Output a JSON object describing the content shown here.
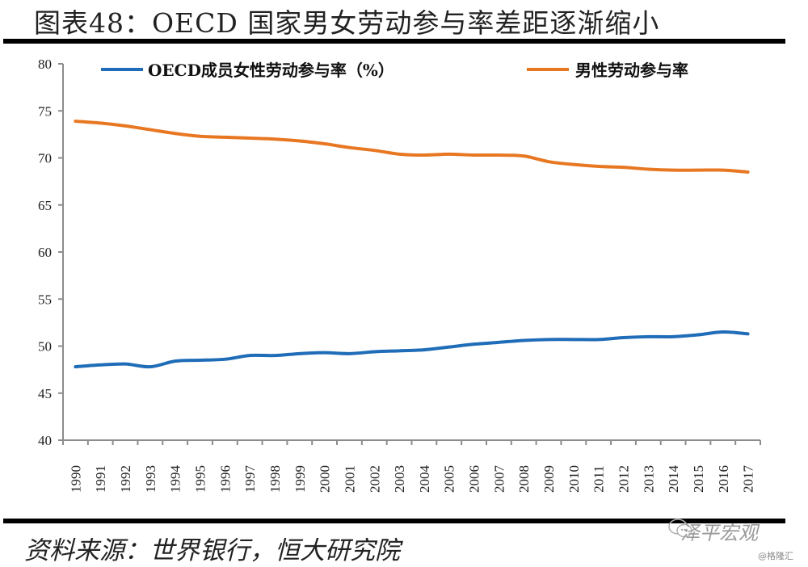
{
  "header": {
    "title": "图表48：OECD 国家男女劳动参与率差距逐渐缩小"
  },
  "footer": {
    "source": "资料来源：世界银行，恒大研究院",
    "watermark": "泽平宏观",
    "watermark_icon": "wechat-icon",
    "credit": "@格隆汇"
  },
  "chart_data": {
    "type": "line",
    "title": "图表48：OECD 国家男女劳动参与率差距逐渐缩小",
    "xlabel": "",
    "ylabel": "",
    "ylim": [
      40,
      80
    ],
    "yticks": [
      "40",
      "45",
      "50",
      "55",
      "60",
      "65",
      "70",
      "75",
      "80"
    ],
    "grid": false,
    "legend_position": "top",
    "categories": [
      "1990",
      "1991",
      "1992",
      "1993",
      "1994",
      "1995",
      "1996",
      "1997",
      "1998",
      "1999",
      "2000",
      "2001",
      "2002",
      "2003",
      "2004",
      "2005",
      "2006",
      "2007",
      "2008",
      "2009",
      "2010",
      "2011",
      "2012",
      "2013",
      "2014",
      "2015",
      "2016",
      "2017"
    ],
    "series": [
      {
        "name": "OECD成员女性劳动参与率（%）",
        "color": "#1f6cb8",
        "values": [
          47.8,
          48.0,
          48.1,
          47.8,
          48.4,
          48.5,
          48.6,
          49.0,
          49.0,
          49.2,
          49.3,
          49.2,
          49.4,
          49.5,
          49.6,
          49.9,
          50.2,
          50.4,
          50.6,
          50.7,
          50.7,
          50.7,
          50.9,
          51.0,
          51.0,
          51.2,
          51.5,
          51.3
        ]
      },
      {
        "name": "男性劳动参与率",
        "color": "#e87722",
        "values": [
          73.9,
          73.7,
          73.4,
          73.0,
          72.6,
          72.3,
          72.2,
          72.1,
          72.0,
          71.8,
          71.5,
          71.1,
          70.8,
          70.4,
          70.3,
          70.4,
          70.3,
          70.3,
          70.2,
          69.6,
          69.3,
          69.1,
          69.0,
          68.8,
          68.7,
          68.7,
          68.7,
          68.5
        ]
      }
    ]
  }
}
